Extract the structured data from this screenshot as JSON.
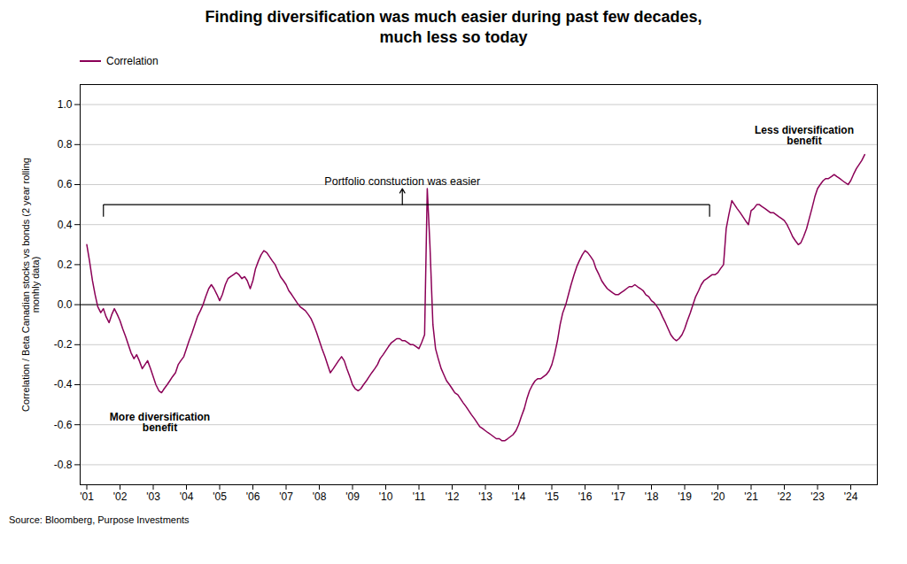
{
  "chart_data": {
    "type": "line",
    "title": "Finding diversification was much easier during past few decades,\nmuch less so today",
    "ylabel": "Correlation / Beta Canadian stocks vs bonds (2 year rolling\nmonhly data)",
    "source": "Source: Bloomberg, Purpose Investments",
    "legend": "upper left",
    "grid": "y",
    "xlim": [
      2000.8,
      2024.8
    ],
    "xticks": [
      {
        "value": 2001,
        "label": "'01"
      },
      {
        "value": 2002,
        "label": "'02"
      },
      {
        "value": 2003,
        "label": "'03"
      },
      {
        "value": 2004,
        "label": "'04"
      },
      {
        "value": 2005,
        "label": "'05"
      },
      {
        "value": 2006,
        "label": "'06"
      },
      {
        "value": 2007,
        "label": "'07"
      },
      {
        "value": 2008,
        "label": "'08"
      },
      {
        "value": 2009,
        "label": "'09"
      },
      {
        "value": 2010,
        "label": "'10"
      },
      {
        "value": 2011,
        "label": "'11"
      },
      {
        "value": 2012,
        "label": "'12"
      },
      {
        "value": 2013,
        "label": "'13"
      },
      {
        "value": 2014,
        "label": "'14"
      },
      {
        "value": 2015,
        "label": "'15"
      },
      {
        "value": 2016,
        "label": "'16"
      },
      {
        "value": 2017,
        "label": "'17"
      },
      {
        "value": 2018,
        "label": "'18"
      },
      {
        "value": 2019,
        "label": "'19"
      },
      {
        "value": 2020,
        "label": "'20"
      },
      {
        "value": 2021,
        "label": "'21"
      },
      {
        "value": 2022,
        "label": "'22"
      },
      {
        "value": 2023,
        "label": "'23"
      },
      {
        "value": 2024,
        "label": "'24"
      }
    ],
    "ylim": [
      -0.9,
      1.1
    ],
    "yticks": [
      -0.8,
      -0.6,
      -0.4,
      -0.2,
      {
        "value": 0.0,
        "label": "0.0"
      },
      0.2,
      0.4,
      0.6,
      0.8,
      {
        "value": 1.0,
        "label": "1.0"
      }
    ],
    "annotations": [
      {
        "text": "Portfolio constuction was easier",
        "x": 2010.5,
        "y": 0.6,
        "anchor": "bottom"
      },
      {
        "text": "More diversification\nbenefit",
        "x": 2003.2,
        "y": -0.54,
        "anchor": "top",
        "bold": true
      },
      {
        "text": "Less diversification\nbenefit",
        "x": 2022.6,
        "y": 0.8,
        "anchor": "bottom",
        "bold": true
      }
    ],
    "bracket": {
      "x_start": 2001.5,
      "x_end": 2019.75,
      "y": 0.5,
      "tick_end": 0.44,
      "arrow_x": 2010.5,
      "arrow_end": 0.58
    },
    "x": [
      2001.0,
      2001.08,
      2001.17,
      2001.25,
      2001.33,
      2001.42,
      2001.5,
      2001.58,
      2001.67,
      2001.75,
      2001.83,
      2001.92,
      2002.0,
      2002.08,
      2002.17,
      2002.25,
      2002.33,
      2002.42,
      2002.5,
      2002.58,
      2002.67,
      2002.75,
      2002.83,
      2002.92,
      2003.0,
      2003.08,
      2003.17,
      2003.25,
      2003.33,
      2003.42,
      2003.5,
      2003.58,
      2003.67,
      2003.75,
      2003.83,
      2003.92,
      2004.0,
      2004.08,
      2004.17,
      2004.25,
      2004.33,
      2004.42,
      2004.5,
      2004.58,
      2004.67,
      2004.75,
      2004.83,
      2004.92,
      2005.0,
      2005.08,
      2005.17,
      2005.25,
      2005.33,
      2005.42,
      2005.5,
      2005.58,
      2005.67,
      2005.75,
      2005.83,
      2005.92,
      2006.0,
      2006.08,
      2006.17,
      2006.25,
      2006.33,
      2006.42,
      2006.5,
      2006.58,
      2006.67,
      2006.75,
      2006.83,
      2006.92,
      2007.0,
      2007.08,
      2007.17,
      2007.25,
      2007.33,
      2007.42,
      2007.5,
      2007.58,
      2007.67,
      2007.75,
      2007.83,
      2007.92,
      2008.0,
      2008.08,
      2008.17,
      2008.25,
      2008.33,
      2008.42,
      2008.5,
      2008.58,
      2008.67,
      2008.75,
      2008.83,
      2008.92,
      2009.0,
      2009.08,
      2009.17,
      2009.25,
      2009.33,
      2009.42,
      2009.5,
      2009.58,
      2009.67,
      2009.75,
      2009.83,
      2009.92,
      2010.0,
      2010.08,
      2010.17,
      2010.25,
      2010.33,
      2010.42,
      2010.5,
      2010.58,
      2010.67,
      2010.75,
      2010.83,
      2010.92,
      2011.0,
      2011.08,
      2011.17,
      2011.25,
      2011.33,
      2011.42,
      2011.5,
      2011.58,
      2011.67,
      2011.75,
      2011.83,
      2011.92,
      2012.0,
      2012.08,
      2012.17,
      2012.25,
      2012.33,
      2012.42,
      2012.5,
      2012.58,
      2012.67,
      2012.75,
      2012.83,
      2012.92,
      2013.0,
      2013.08,
      2013.17,
      2013.25,
      2013.33,
      2013.42,
      2013.5,
      2013.58,
      2013.67,
      2013.75,
      2013.83,
      2013.92,
      2014.0,
      2014.08,
      2014.17,
      2014.25,
      2014.33,
      2014.42,
      2014.5,
      2014.58,
      2014.67,
      2014.75,
      2014.83,
      2014.92,
      2015.0,
      2015.08,
      2015.17,
      2015.25,
      2015.33,
      2015.42,
      2015.5,
      2015.58,
      2015.67,
      2015.75,
      2015.83,
      2015.92,
      2016.0,
      2016.08,
      2016.17,
      2016.25,
      2016.33,
      2016.42,
      2016.5,
      2016.58,
      2016.67,
      2016.75,
      2016.83,
      2016.92,
      2017.0,
      2017.08,
      2017.17,
      2017.25,
      2017.33,
      2017.42,
      2017.5,
      2017.58,
      2017.67,
      2017.75,
      2017.83,
      2017.92,
      2018.0,
      2018.08,
      2018.17,
      2018.25,
      2018.33,
      2018.42,
      2018.5,
      2018.58,
      2018.67,
      2018.75,
      2018.83,
      2018.92,
      2019.0,
      2019.08,
      2019.17,
      2019.25,
      2019.33,
      2019.42,
      2019.5,
      2019.58,
      2019.67,
      2019.75,
      2019.83,
      2019.92,
      2020.0,
      2020.08,
      2020.17,
      2020.25,
      2020.33,
      2020.42,
      2020.5,
      2020.58,
      2020.67,
      2020.75,
      2020.83,
      2020.92,
      2021.0,
      2021.08,
      2021.17,
      2021.25,
      2021.33,
      2021.42,
      2021.5,
      2021.58,
      2021.67,
      2021.75,
      2021.83,
      2021.92,
      2022.0,
      2022.08,
      2022.17,
      2022.25,
      2022.33,
      2022.42,
      2022.5,
      2022.58,
      2022.67,
      2022.75,
      2022.83,
      2022.92,
      2023.0,
      2023.08,
      2023.17,
      2023.25,
      2023.33,
      2023.42,
      2023.5,
      2023.58,
      2023.67,
      2023.75,
      2023.83,
      2023.92,
      2024.0,
      2024.08,
      2024.17,
      2024.25,
      2024.33,
      2024.42
    ],
    "series": [
      {
        "name": "Correlation",
        "color": "#8b0057",
        "values": [
          0.3,
          0.22,
          0.12,
          0.05,
          -0.01,
          -0.04,
          -0.02,
          -0.06,
          -0.09,
          -0.05,
          -0.02,
          -0.05,
          -0.08,
          -0.12,
          -0.16,
          -0.2,
          -0.24,
          -0.27,
          -0.25,
          -0.28,
          -0.32,
          -0.3,
          -0.28,
          -0.32,
          -0.36,
          -0.4,
          -0.43,
          -0.44,
          -0.42,
          -0.4,
          -0.38,
          -0.36,
          -0.34,
          -0.3,
          -0.28,
          -0.26,
          -0.22,
          -0.18,
          -0.14,
          -0.1,
          -0.06,
          -0.03,
          0.0,
          0.04,
          0.08,
          0.1,
          0.08,
          0.05,
          0.02,
          0.05,
          0.1,
          0.13,
          0.14,
          0.15,
          0.16,
          0.15,
          0.13,
          0.14,
          0.12,
          0.08,
          0.12,
          0.18,
          0.22,
          0.25,
          0.27,
          0.26,
          0.24,
          0.22,
          0.2,
          0.17,
          0.14,
          0.12,
          0.1,
          0.07,
          0.05,
          0.03,
          0.01,
          -0.01,
          -0.02,
          -0.03,
          -0.05,
          -0.07,
          -0.1,
          -0.14,
          -0.18,
          -0.22,
          -0.26,
          -0.3,
          -0.34,
          -0.32,
          -0.3,
          -0.28,
          -0.26,
          -0.28,
          -0.32,
          -0.36,
          -0.4,
          -0.42,
          -0.43,
          -0.42,
          -0.4,
          -0.38,
          -0.36,
          -0.34,
          -0.32,
          -0.3,
          -0.27,
          -0.25,
          -0.23,
          -0.21,
          -0.19,
          -0.18,
          -0.17,
          -0.17,
          -0.18,
          -0.18,
          -0.19,
          -0.2,
          -0.2,
          -0.21,
          -0.22,
          -0.19,
          -0.15,
          0.58,
          0.3,
          -0.1,
          -0.22,
          -0.27,
          -0.32,
          -0.35,
          -0.38,
          -0.4,
          -0.42,
          -0.44,
          -0.45,
          -0.47,
          -0.49,
          -0.51,
          -0.53,
          -0.55,
          -0.57,
          -0.59,
          -0.61,
          -0.62,
          -0.63,
          -0.64,
          -0.65,
          -0.66,
          -0.67,
          -0.67,
          -0.68,
          -0.68,
          -0.67,
          -0.66,
          -0.65,
          -0.63,
          -0.6,
          -0.56,
          -0.52,
          -0.47,
          -0.43,
          -0.4,
          -0.38,
          -0.37,
          -0.37,
          -0.36,
          -0.35,
          -0.33,
          -0.3,
          -0.25,
          -0.18,
          -0.1,
          -0.04,
          0.0,
          0.05,
          0.1,
          0.15,
          0.19,
          0.22,
          0.25,
          0.27,
          0.26,
          0.24,
          0.22,
          0.18,
          0.15,
          0.12,
          0.1,
          0.08,
          0.07,
          0.06,
          0.05,
          0.05,
          0.06,
          0.07,
          0.08,
          0.09,
          0.09,
          0.1,
          0.09,
          0.08,
          0.07,
          0.05,
          0.04,
          0.02,
          0.01,
          -0.01,
          -0.03,
          -0.06,
          -0.09,
          -0.12,
          -0.15,
          -0.17,
          -0.18,
          -0.17,
          -0.15,
          -0.12,
          -0.08,
          -0.04,
          0.0,
          0.04,
          0.07,
          0.1,
          0.12,
          0.13,
          0.14,
          0.15,
          0.15,
          0.16,
          0.18,
          0.2,
          0.38,
          0.45,
          0.52,
          0.5,
          0.48,
          0.46,
          0.44,
          0.42,
          0.4,
          0.47,
          0.48,
          0.5,
          0.5,
          0.49,
          0.48,
          0.47,
          0.46,
          0.46,
          0.45,
          0.44,
          0.43,
          0.42,
          0.4,
          0.37,
          0.34,
          0.32,
          0.3,
          0.31,
          0.34,
          0.38,
          0.43,
          0.48,
          0.54,
          0.58,
          0.6,
          0.62,
          0.63,
          0.63,
          0.64,
          0.65,
          0.64,
          0.63,
          0.62,
          0.61,
          0.6,
          0.62,
          0.65,
          0.68,
          0.7,
          0.72,
          0.75
        ]
      }
    ]
  }
}
